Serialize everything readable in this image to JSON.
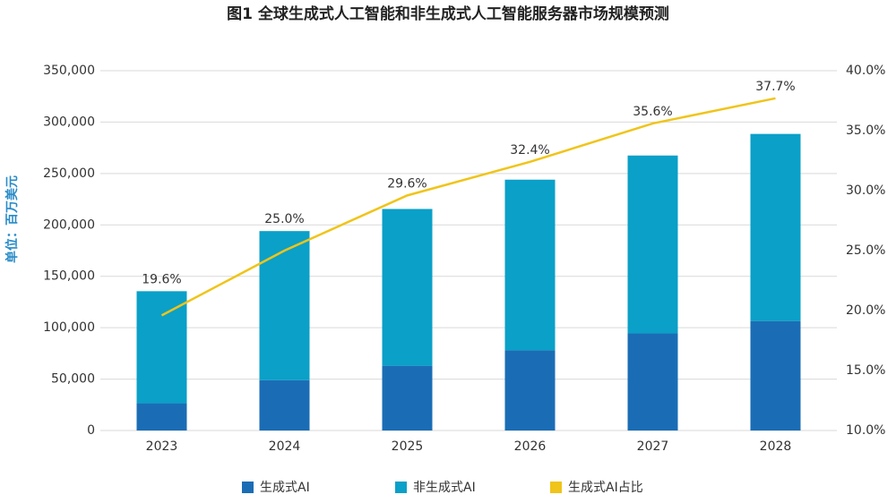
{
  "chart_data": {
    "type": "bar",
    "title": "图1 全球生成式人工智能和非生成式人工智能服务器市场规模预测",
    "y_label": "单位：百万美元",
    "categories": [
      "2023",
      "2024",
      "2025",
      "2026",
      "2027",
      "2028"
    ],
    "series": [
      {
        "name": "生成式AI",
        "type": "bar",
        "color": "#1a6db5",
        "values": [
          26500,
          49000,
          63000,
          78000,
          94500,
          106500
        ]
      },
      {
        "name": "非生成式AI",
        "type": "bar",
        "color": "#0aa0c8",
        "values": [
          109000,
          145000,
          152500,
          166000,
          173000,
          182000
        ]
      },
      {
        "name": "生成式AI占比",
        "type": "line",
        "axis": "y2",
        "color": "#f0c419",
        "values": [
          19.6,
          25.0,
          29.6,
          32.4,
          35.6,
          37.7
        ],
        "value_labels": [
          "19.6%",
          "25.0%",
          "29.6%",
          "32.4%",
          "35.6%",
          "37.7%"
        ]
      }
    ],
    "ylim": [
      0,
      350000
    ],
    "yticks": [
      0,
      {
        "value": 50000,
        "label": "50,000"
      },
      {
        "value": 100000,
        "label": "100,000"
      },
      {
        "value": 150000,
        "label": "150,000"
      },
      {
        "value": 200000,
        "label": "200,000"
      },
      {
        "value": 250000,
        "label": "250,000"
      },
      {
        "value": 300000,
        "label": "300,000"
      },
      {
        "value": 350000,
        "label": "350,000"
      }
    ],
    "y2lim": [
      10,
      40
    ],
    "y2ticks": [
      {
        "value": 10,
        "label": "10.0%"
      },
      {
        "value": 15,
        "label": "15.0%"
      },
      {
        "value": 20,
        "label": "20.0%"
      },
      {
        "value": 25,
        "label": "25.0%"
      },
      {
        "value": 30,
        "label": "30.0%"
      },
      {
        "value": 35,
        "label": "35.0%"
      },
      {
        "value": 40,
        "label": "40.0%"
      }
    ],
    "grid": true
  }
}
